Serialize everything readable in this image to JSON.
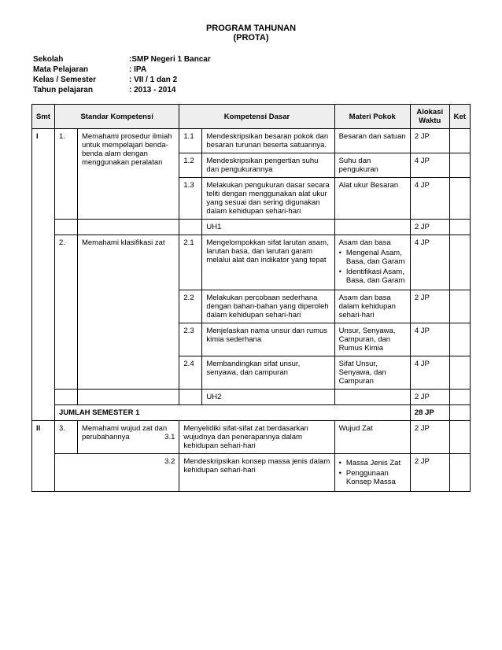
{
  "title_line1": "PROGRAM TAHUNAN",
  "title_line2": "(PROTA)",
  "meta": [
    {
      "label": "Sekolah",
      "value": ":SMP Negeri 1 Bancar"
    },
    {
      "label": "Mata Pelajaran",
      "value": ": IPA"
    },
    {
      "label": "Kelas / Semester",
      "value": ": VII / 1 dan 2"
    },
    {
      "label": "Tahun pelajaran",
      "value": ": 2013 - 2014"
    }
  ],
  "headers": {
    "smt": "Smt",
    "sk": "Standar Kompetensi",
    "kd": "Kompetensi Dasar",
    "materi": "Materi Pokok",
    "alokasi": "Alokasi Waktu",
    "ket": "Ket"
  },
  "smt1": "I",
  "smt2": "II",
  "sk1_num": "1.",
  "sk1_text": "Memahami prosedur ilmiah untuk mempelajari benda-benda alam dengan menggunakan peralatan",
  "sk2_num": "2.",
  "sk2_text": "Memahami klasifikasi zat",
  "sk3_num": "3.",
  "sk3_text": "Memahami wujud zat dan perubahannya",
  "kd_1_1_num": "1.1",
  "kd_1_1": "Mendeskripsikan besaran pokok dan besaran turunan beserta satuannya.",
  "mat_1_1": "Besaran dan satuan",
  "al_1_1": "2 JP",
  "kd_1_2_num": "1.2",
  "kd_1_2": "Mendeskripsikan pengertian suhu dan pengukurannya",
  "mat_1_2": "Suhu dan pengukuran",
  "al_1_2": "4 JP",
  "kd_1_3_num": "1.3",
  "kd_1_3": "Melakukan pengukuran dasar secara teliti dengan menggunakan alat ukur yang sesuai dan sering digunakan dalam kehidupan sehari-hari",
  "mat_1_3": "Alat ukur Besaran",
  "al_1_3": "4 JP",
  "uh1": "UH1",
  "uh1_al": "2 JP",
  "kd_2_1_num": "2.1",
  "kd_2_1": "Mengelompokkan sifat larutan asam, larutan basa, dan larutan garam melalui alat dan indikator yang tepat",
  "mat_2_1_title": "Asam dan basa",
  "mat_2_1_b1": "Mengenal Asam, Basa, dan Garam",
  "mat_2_1_b2": "Identifikasi Asam, Basa, dan Garam",
  "al_2_1": "4 JP",
  "kd_2_2_num": "2.2",
  "kd_2_2": "Melakukan percobaan sederhana dengan bahan-bahan yang diperoleh dalam kehidupan sehari-hari",
  "mat_2_2": "Asam dan basa dalam kehidupan sehari-hari",
  "al_2_2": "2 JP",
  "kd_2_3_num": "2.3",
  "kd_2_3": "Menjelaskan nama unsur dan rumus kimia sederhana",
  "mat_2_3": "Unsur, Senyawa, Campuran, dan Rumus Kimia",
  "al_2_3": "4 JP",
  "kd_2_4_num": "2.4",
  "kd_2_4": "Membandingkan sifat unsur, senyawa, dan campuran",
  "mat_2_4": "Sifat Unsur, Senyawa, dan Campuran",
  "al_2_4": "4 JP",
  "uh2": "UH2",
  "uh2_al": "2 JP",
  "sum1_label": "JUMLAH SEMESTER 1",
  "sum1_val": "28 JP",
  "kd_3_1_num": "3.1",
  "kd_3_1": "Menyelidiki sifat-sifat zat berdasarkan wujudnya dan penerapannya dalam kehidupan sehari-hari",
  "mat_3_1": "Wujud Zat",
  "al_3_1": "2 JP",
  "kd_3_2_num": "3.2",
  "kd_3_2": "Mendeskripsikan konsep massa jenis dalam kehidupan sehari-hari",
  "mat_3_2_b1": "Massa Jenis Zat",
  "mat_3_2_b2": "Penggunaan Konsep Massa",
  "al_3_2": "2 JP"
}
